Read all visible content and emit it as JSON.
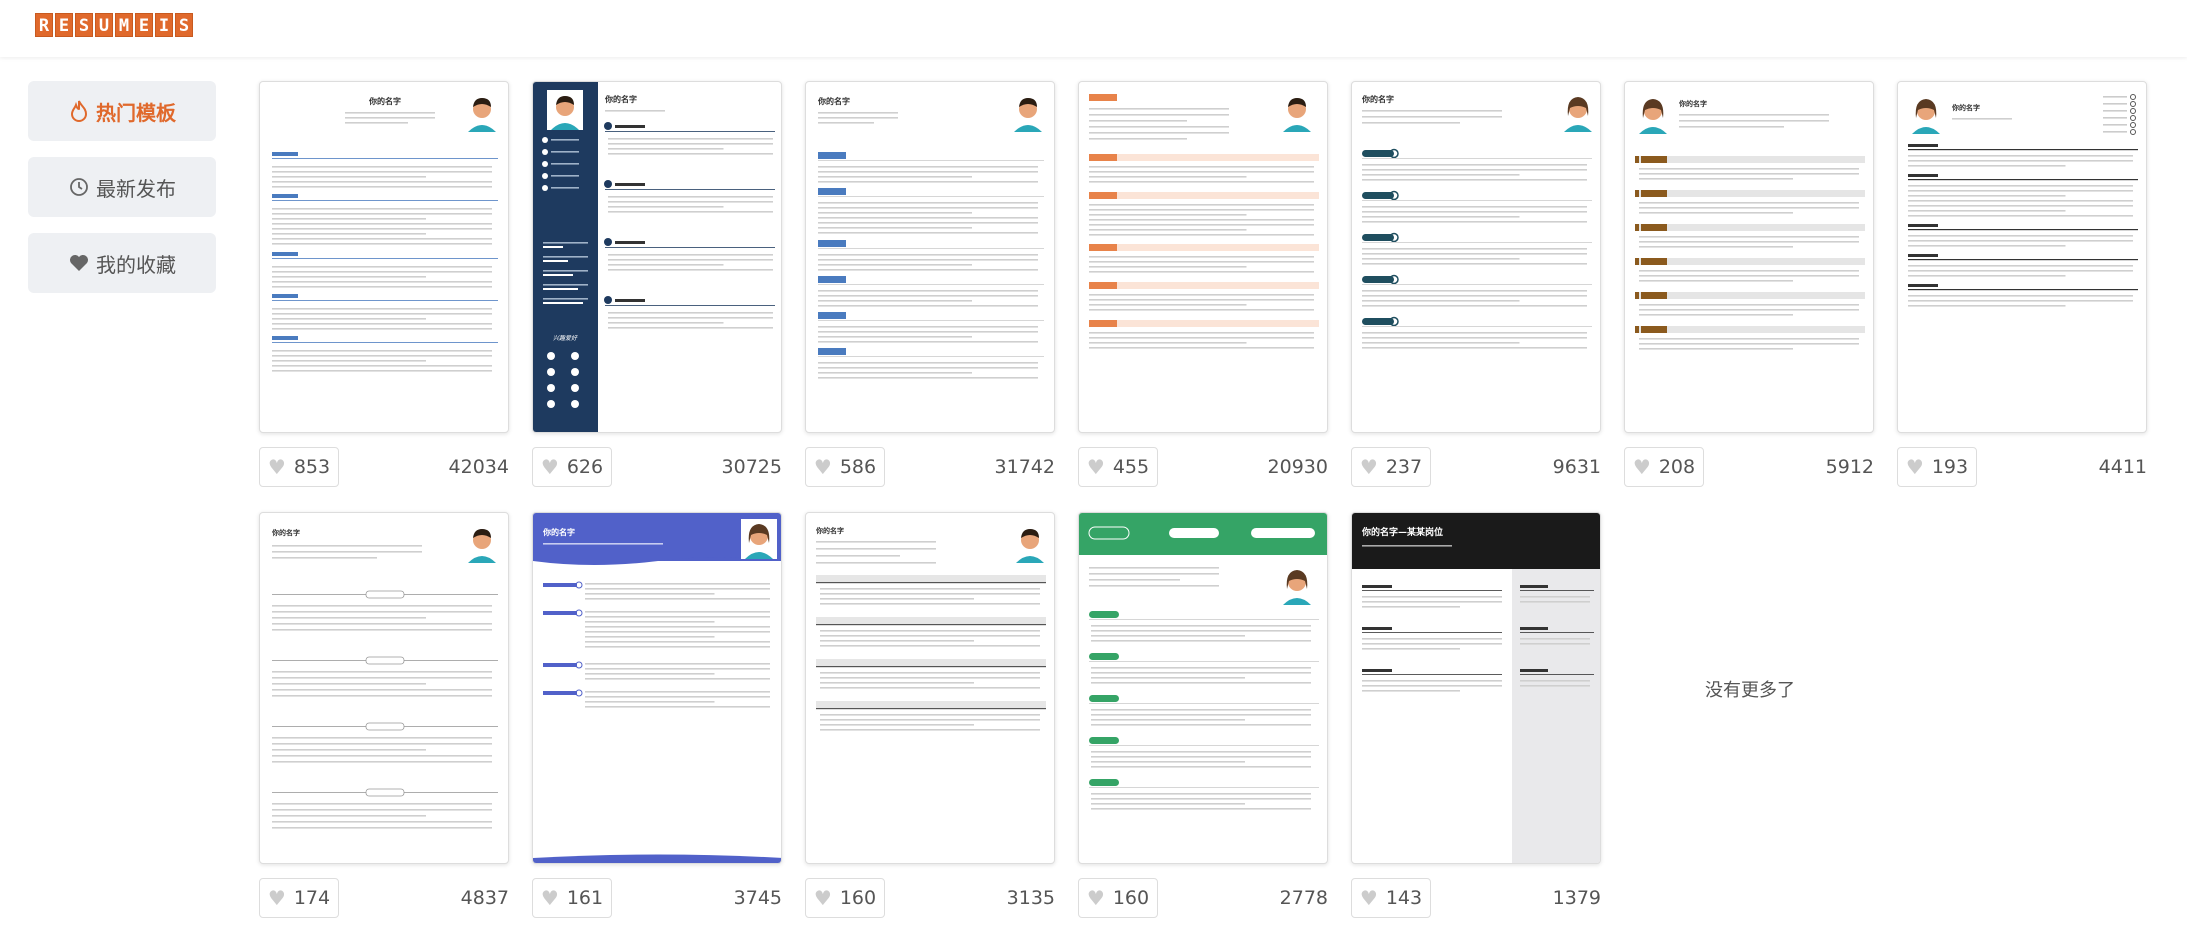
{
  "logo": {
    "letters": [
      "R",
      "E",
      "S",
      "U",
      "M",
      "E",
      "I",
      "S"
    ]
  },
  "sidebar": {
    "items": [
      {
        "label": "热门模板",
        "icon": "flame-icon",
        "active": true
      },
      {
        "label": "最新发布",
        "icon": "clock-icon",
        "active": false
      },
      {
        "label": "我的收藏",
        "icon": "heart-icon",
        "active": false
      }
    ]
  },
  "templates": [
    {
      "likes": "853",
      "views": "42034",
      "style": "classic-blue",
      "title": "你的名字"
    },
    {
      "likes": "626",
      "views": "30725",
      "style": "navy-sidebar",
      "title": "你的名字",
      "sidebar_label": "兴趣爱好"
    },
    {
      "likes": "586",
      "views": "31742",
      "style": "blue-tags",
      "title": "你的名字"
    },
    {
      "likes": "455",
      "views": "20930",
      "style": "orange-tags",
      "title": ""
    },
    {
      "likes": "237",
      "views": "9631",
      "style": "teal-circles",
      "title": "你的名字"
    },
    {
      "likes": "208",
      "views": "5912",
      "style": "brown-bars",
      "title": "你的名字"
    },
    {
      "likes": "193",
      "views": "4411",
      "style": "minimal-female",
      "title": "你的名字"
    },
    {
      "likes": "174",
      "views": "4837",
      "style": "centered-sections",
      "title": "你的名字"
    },
    {
      "likes": "161",
      "views": "3745",
      "style": "purple-header",
      "title": "你的名字"
    },
    {
      "likes": "160",
      "views": "3135",
      "style": "gray-bars",
      "title": "你的名字"
    },
    {
      "likes": "160",
      "views": "2778",
      "style": "green-header",
      "title": "你的名字"
    },
    {
      "likes": "143",
      "views": "1379",
      "style": "black-header",
      "title": "你的名字—某某岗位"
    }
  ],
  "no_more": "没有更多了",
  "colors": {
    "accent": "#e0692c",
    "navy": "#1e3a5f",
    "blue": "#4a7bbf",
    "orange": "#e8834a",
    "teal": "#1f4e5f",
    "brown": "#8b5a1e",
    "purple": "#5161c9",
    "green": "#35a466",
    "black": "#1a1a1a"
  }
}
